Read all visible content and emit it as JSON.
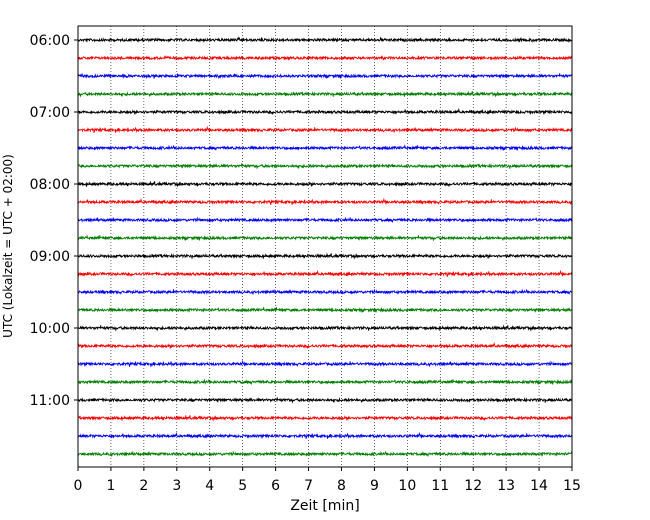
{
  "chart_data": {
    "type": "line",
    "title": "",
    "xlabel": "Zeit  [min]",
    "ylabel": "UTC (Lokalzeit = UTC + 02:00)",
    "xlim": [
      0,
      15
    ],
    "x_ticks": [
      "0",
      "1",
      "2",
      "3",
      "4",
      "5",
      "6",
      "7",
      "8",
      "9",
      "10",
      "11",
      "12",
      "13",
      "14",
      "15"
    ],
    "y_tick_labels": [
      "06:00",
      "07:00",
      "08:00",
      "09:00",
      "10:00",
      "11:00"
    ],
    "grid": "vertical dotted at each minute",
    "legend": "none",
    "trace_interval_min": 15,
    "trace_colors": [
      "#000000",
      "#ff0000",
      "#0000ff",
      "#007f00"
    ],
    "traces": [
      {
        "start": "06:00",
        "color": "#000000"
      },
      {
        "start": "06:15",
        "color": "#ff0000"
      },
      {
        "start": "06:30",
        "color": "#0000ff"
      },
      {
        "start": "06:45",
        "color": "#007f00"
      },
      {
        "start": "07:00",
        "color": "#000000"
      },
      {
        "start": "07:15",
        "color": "#ff0000"
      },
      {
        "start": "07:30",
        "color": "#0000ff"
      },
      {
        "start": "07:45",
        "color": "#007f00"
      },
      {
        "start": "08:00",
        "color": "#000000"
      },
      {
        "start": "08:15",
        "color": "#ff0000"
      },
      {
        "start": "08:30",
        "color": "#0000ff"
      },
      {
        "start": "08:45",
        "color": "#007f00"
      },
      {
        "start": "09:00",
        "color": "#000000"
      },
      {
        "start": "09:15",
        "color": "#ff0000"
      },
      {
        "start": "09:30",
        "color": "#0000ff"
      },
      {
        "start": "09:45",
        "color": "#007f00"
      },
      {
        "start": "10:00",
        "color": "#000000"
      },
      {
        "start": "10:15",
        "color": "#ff0000"
      },
      {
        "start": "10:30",
        "color": "#0000ff"
      },
      {
        "start": "10:45",
        "color": "#007f00"
      },
      {
        "start": "11:00",
        "color": "#000000"
      },
      {
        "start": "11:15",
        "color": "#ff0000"
      },
      {
        "start": "11:30",
        "color": "#0000ff"
      },
      {
        "start": "11:45",
        "color": "#007f00"
      }
    ]
  }
}
